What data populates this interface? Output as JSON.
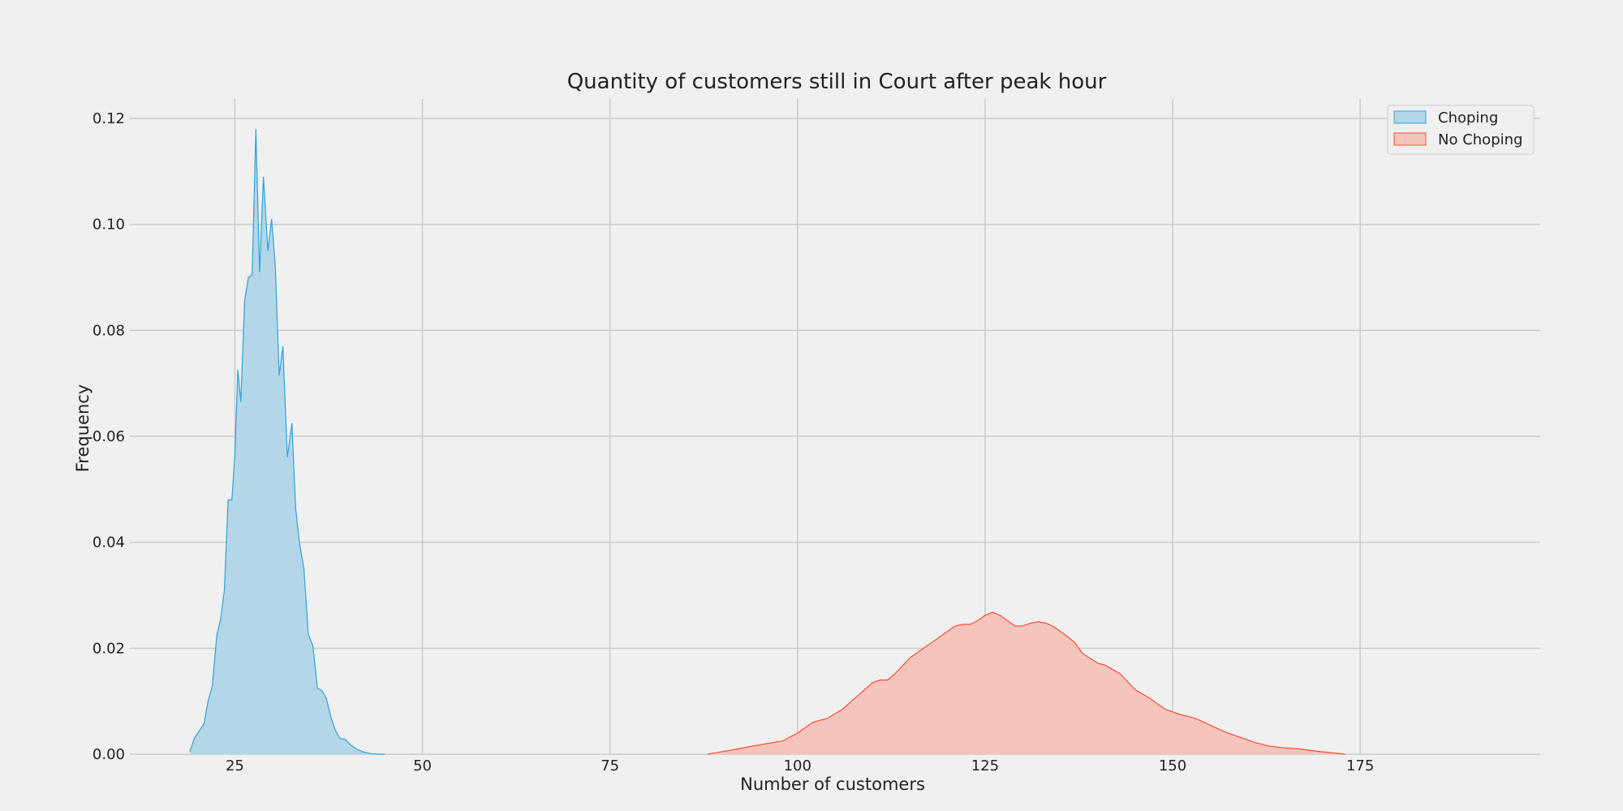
{
  "chart_data": {
    "type": "area",
    "title": "Quantity of customers still in Court after peak hour",
    "xlabel": "Number of customers",
    "ylabel": "Frequency",
    "xlim": [
      11,
      199
    ],
    "ylim": [
      0,
      0.12
    ],
    "xticks": [
      25,
      50,
      75,
      100,
      125,
      150,
      175
    ],
    "yticks": [
      0.0,
      0.02,
      0.04,
      0.06,
      0.08,
      0.1,
      0.12
    ],
    "xtick_labels": [
      "25",
      "50",
      "75",
      "100",
      "125",
      "150",
      "175"
    ],
    "ytick_labels": [
      "0.00",
      "0.02",
      "0.04",
      "0.06",
      "0.08",
      "0.10",
      "0.12"
    ],
    "grid": true,
    "legend_position": "top-right",
    "series": [
      {
        "name": "Choping",
        "line_color": "#30a2da",
        "fill_color": "#b3d6e8",
        "x": [
          19.0,
          19.6,
          20.3,
          20.9,
          21.4,
          22.0,
          22.6,
          23.1,
          23.6,
          24.1,
          24.6,
          25.0,
          25.4,
          25.8,
          26.3,
          26.8,
          27.3,
          27.8,
          28.3,
          28.8,
          29.4,
          29.9,
          30.4,
          30.9,
          31.4,
          32.0,
          32.6,
          33.1,
          33.6,
          34.2,
          34.8,
          35.4,
          36.0,
          36.6,
          37.2,
          37.8,
          38.4,
          39.0,
          39.7,
          40.4,
          41.2,
          42.2,
          43.2,
          44.2,
          45.0
        ],
        "y": [
          0.0005,
          0.003,
          0.0045,
          0.0058,
          0.0098,
          0.013,
          0.0225,
          0.0255,
          0.031,
          0.048,
          0.048,
          0.0565,
          0.0725,
          0.0665,
          0.0855,
          0.09,
          0.0905,
          0.118,
          0.091,
          0.109,
          0.095,
          0.101,
          0.092,
          0.0715,
          0.077,
          0.056,
          0.0625,
          0.0465,
          0.04,
          0.035,
          0.0225,
          0.0205,
          0.0125,
          0.012,
          0.0105,
          0.007,
          0.0045,
          0.003,
          0.0028,
          0.0018,
          0.001,
          0.0004,
          0.0001,
          0.0,
          0.0
        ]
      },
      {
        "name": "No Choping",
        "line_color": "#fc4f30",
        "fill_color": "#f4c4bd",
        "x": [
          88,
          92,
          95,
          98,
          100,
          102,
          104,
          106,
          108,
          110,
          111,
          112,
          113,
          115,
          117,
          119,
          121,
          122,
          123,
          124,
          125,
          126,
          127,
          128,
          129,
          130,
          131,
          132,
          133,
          134,
          135,
          136,
          137,
          138,
          140,
          141,
          143,
          145,
          147,
          149,
          151,
          153,
          155,
          157,
          159,
          161,
          163,
          165,
          167,
          169,
          171,
          173
        ],
        "y": [
          0.0,
          0.001,
          0.0018,
          0.0025,
          0.004,
          0.006,
          0.0068,
          0.0085,
          0.011,
          0.0135,
          0.014,
          0.014,
          0.0152,
          0.0182,
          0.0202,
          0.0222,
          0.0242,
          0.0245,
          0.0245,
          0.0252,
          0.0262,
          0.0268,
          0.0262,
          0.0252,
          0.0242,
          0.0242,
          0.0247,
          0.025,
          0.0248,
          0.0242,
          0.0232,
          0.0222,
          0.021,
          0.019,
          0.0172,
          0.0168,
          0.0152,
          0.0122,
          0.0105,
          0.0085,
          0.0075,
          0.0068,
          0.0055,
          0.0042,
          0.0032,
          0.0022,
          0.0015,
          0.0012,
          0.001,
          0.0006,
          0.0003,
          0.0
        ]
      }
    ]
  }
}
